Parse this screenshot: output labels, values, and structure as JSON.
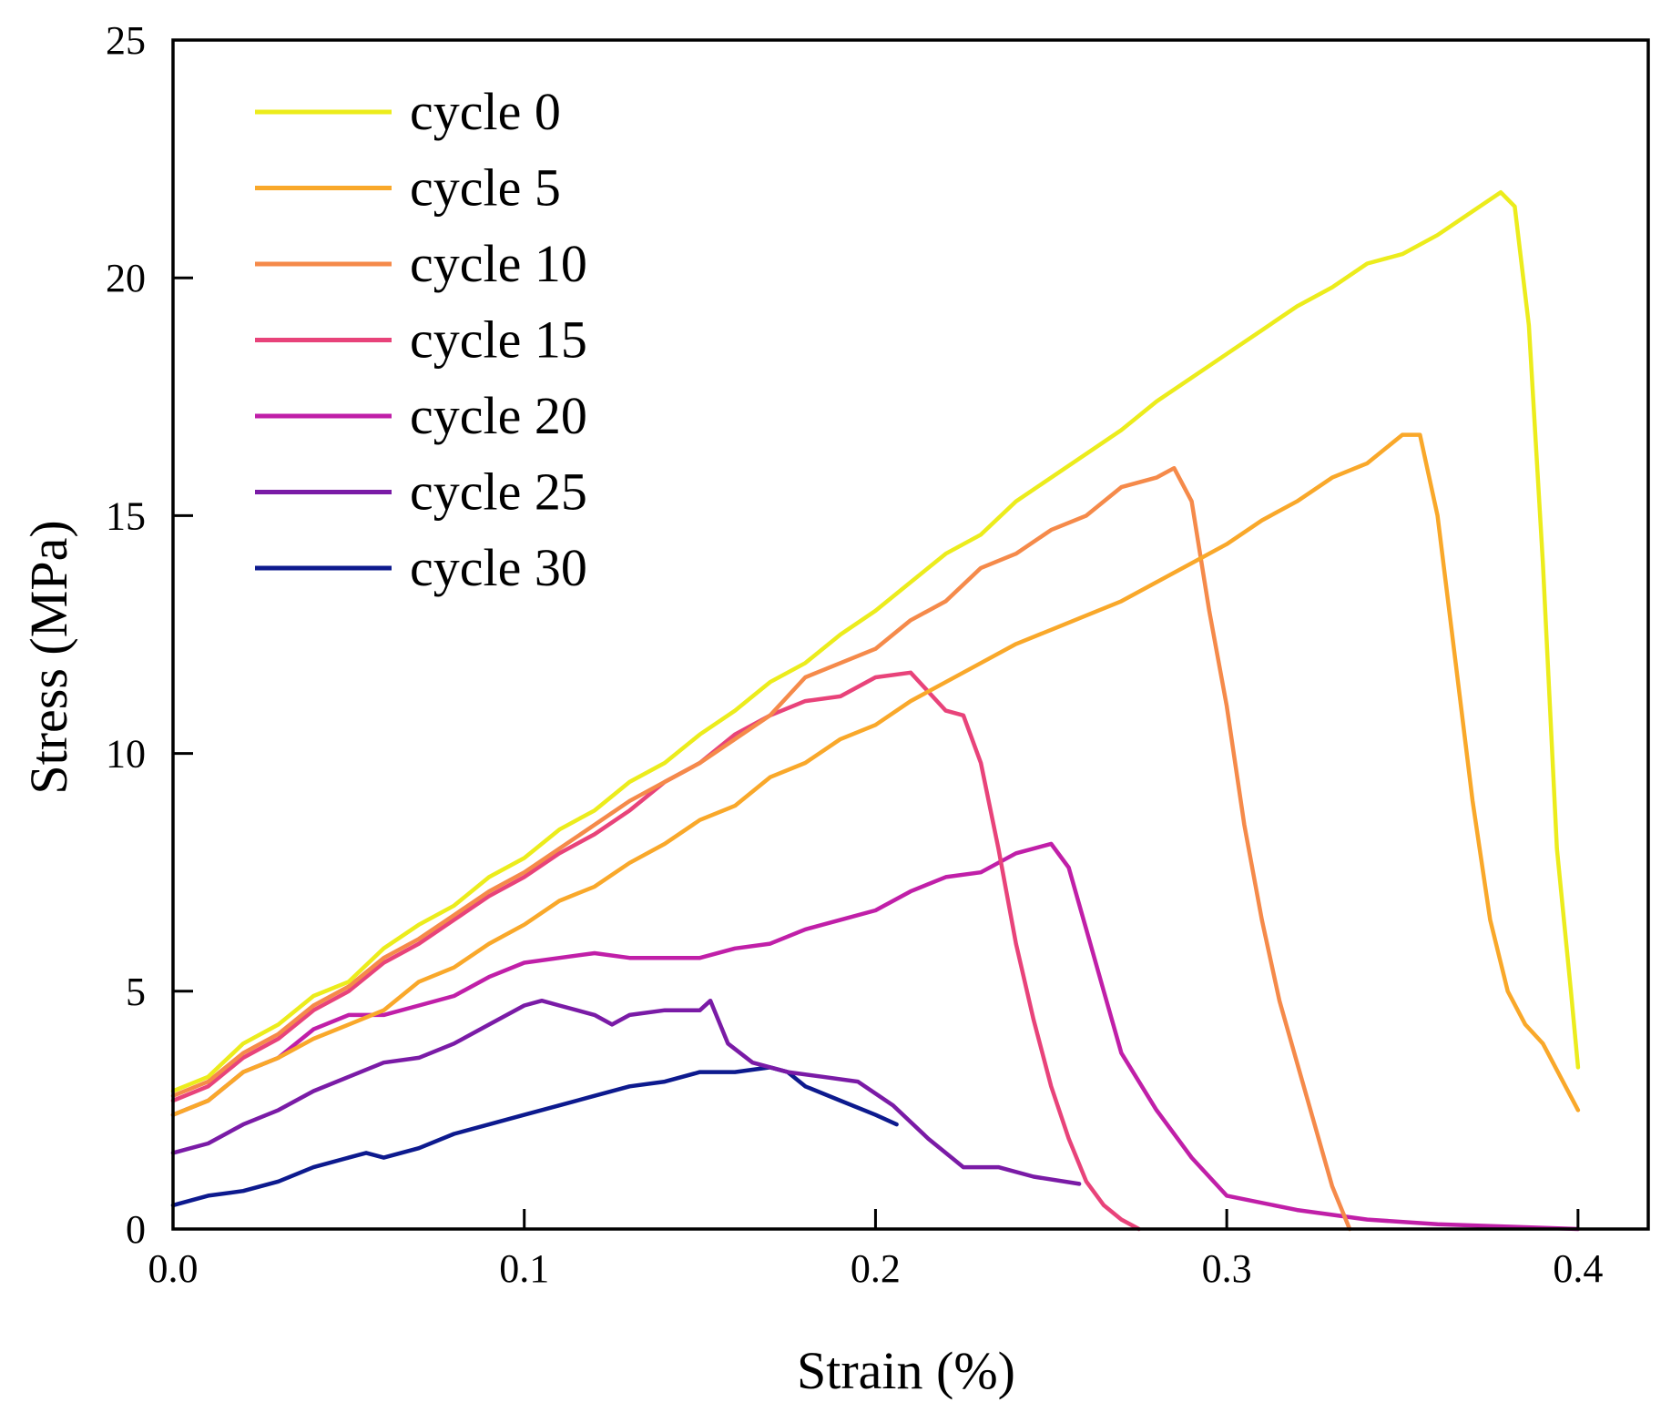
{
  "chart_data": {
    "type": "line",
    "title": "",
    "xlabel": "Strain (%)",
    "ylabel": "Stress (MPa)",
    "xlim": [
      0.0,
      0.42
    ],
    "ylim": [
      0,
      25
    ],
    "xticks": [
      0.0,
      0.1,
      0.2,
      0.3,
      0.4
    ],
    "xtick_labels": [
      "0.0",
      "0.1",
      "0.2",
      "0.3",
      "0.4"
    ],
    "yticks": [
      0,
      5,
      10,
      15,
      20,
      25
    ],
    "ytick_labels": [
      "0",
      "5",
      "10",
      "15",
      "20",
      "25"
    ],
    "grid": false,
    "legend_position": "top-left",
    "series": [
      {
        "name": "cycle 0",
        "color": "#ecec1c",
        "x": [
          0.0,
          0.01,
          0.02,
          0.03,
          0.04,
          0.05,
          0.06,
          0.07,
          0.08,
          0.09,
          0.1,
          0.11,
          0.12,
          0.13,
          0.14,
          0.15,
          0.16,
          0.17,
          0.18,
          0.19,
          0.2,
          0.21,
          0.22,
          0.23,
          0.24,
          0.25,
          0.26,
          0.27,
          0.28,
          0.29,
          0.3,
          0.31,
          0.32,
          0.33,
          0.34,
          0.35,
          0.36,
          0.37,
          0.378,
          0.382,
          0.386,
          0.39,
          0.394,
          0.398,
          0.4
        ],
        "y": [
          2.9,
          3.2,
          3.9,
          4.3,
          4.9,
          5.2,
          5.9,
          6.4,
          6.8,
          7.4,
          7.8,
          8.4,
          8.8,
          9.4,
          9.8,
          10.4,
          10.9,
          11.5,
          11.9,
          12.5,
          13.0,
          13.6,
          14.2,
          14.6,
          15.3,
          15.8,
          16.3,
          16.8,
          17.4,
          17.9,
          18.4,
          18.9,
          19.4,
          19.8,
          20.3,
          20.5,
          20.9,
          21.4,
          21.8,
          21.5,
          19.0,
          14.0,
          8.0,
          5.0,
          3.4
        ]
      },
      {
        "name": "cycle 5",
        "color": "#f9a82a",
        "x": [
          0.0,
          0.01,
          0.02,
          0.03,
          0.04,
          0.05,
          0.06,
          0.07,
          0.08,
          0.09,
          0.1,
          0.11,
          0.12,
          0.13,
          0.14,
          0.15,
          0.16,
          0.17,
          0.18,
          0.19,
          0.2,
          0.21,
          0.22,
          0.23,
          0.24,
          0.25,
          0.26,
          0.27,
          0.28,
          0.29,
          0.3,
          0.31,
          0.32,
          0.33,
          0.34,
          0.35,
          0.355,
          0.36,
          0.365,
          0.37,
          0.375,
          0.38,
          0.385,
          0.39,
          0.4
        ],
        "y": [
          2.4,
          2.7,
          3.3,
          3.6,
          4.0,
          4.3,
          4.6,
          5.2,
          5.5,
          6.0,
          6.4,
          6.9,
          7.2,
          7.7,
          8.1,
          8.6,
          8.9,
          9.5,
          9.8,
          10.3,
          10.6,
          11.1,
          11.5,
          11.9,
          12.3,
          12.6,
          12.9,
          13.2,
          13.6,
          14.0,
          14.4,
          14.9,
          15.3,
          15.8,
          16.1,
          16.7,
          16.7,
          15.0,
          12.0,
          9.0,
          6.5,
          5.0,
          4.3,
          3.9,
          2.5
        ]
      },
      {
        "name": "cycle 10",
        "color": "#f58a4a",
        "x": [
          0.0,
          0.01,
          0.02,
          0.03,
          0.04,
          0.05,
          0.06,
          0.07,
          0.08,
          0.09,
          0.1,
          0.11,
          0.12,
          0.13,
          0.14,
          0.15,
          0.16,
          0.17,
          0.18,
          0.19,
          0.2,
          0.21,
          0.22,
          0.23,
          0.24,
          0.25,
          0.26,
          0.27,
          0.28,
          0.285,
          0.29,
          0.295,
          0.3,
          0.305,
          0.31,
          0.315,
          0.32,
          0.325,
          0.33,
          0.335
        ],
        "y": [
          2.8,
          3.1,
          3.7,
          4.1,
          4.7,
          5.1,
          5.7,
          6.1,
          6.6,
          7.1,
          7.5,
          8.0,
          8.5,
          9.0,
          9.4,
          9.8,
          10.3,
          10.8,
          11.6,
          11.9,
          12.2,
          12.8,
          13.2,
          13.9,
          14.2,
          14.7,
          15.0,
          15.6,
          15.8,
          16.0,
          15.3,
          13.0,
          11.0,
          8.5,
          6.5,
          4.8,
          3.5,
          2.2,
          0.9,
          0.0
        ]
      },
      {
        "name": "cycle 15",
        "color": "#e8437a",
        "x": [
          0.0,
          0.01,
          0.02,
          0.03,
          0.04,
          0.05,
          0.06,
          0.07,
          0.08,
          0.09,
          0.1,
          0.11,
          0.12,
          0.13,
          0.14,
          0.15,
          0.16,
          0.17,
          0.18,
          0.19,
          0.2,
          0.21,
          0.215,
          0.22,
          0.225,
          0.23,
          0.235,
          0.24,
          0.245,
          0.25,
          0.255,
          0.26,
          0.265,
          0.27,
          0.275
        ],
        "y": [
          2.7,
          3.0,
          3.6,
          4.0,
          4.6,
          5.0,
          5.6,
          6.0,
          6.5,
          7.0,
          7.4,
          7.9,
          8.3,
          8.8,
          9.4,
          9.8,
          10.4,
          10.8,
          11.1,
          11.2,
          11.6,
          11.7,
          11.3,
          10.9,
          10.8,
          9.8,
          8.0,
          6.0,
          4.4,
          3.0,
          1.9,
          1.0,
          0.5,
          0.2,
          0.0
        ]
      },
      {
        "name": "cycle 20",
        "color": "#c01fa8",
        "x": [
          0.0,
          0.01,
          0.02,
          0.03,
          0.04,
          0.05,
          0.06,
          0.07,
          0.08,
          0.09,
          0.1,
          0.11,
          0.12,
          0.13,
          0.14,
          0.15,
          0.16,
          0.17,
          0.18,
          0.19,
          0.2,
          0.21,
          0.22,
          0.23,
          0.24,
          0.25,
          0.255,
          0.26,
          0.265,
          0.27,
          0.28,
          0.29,
          0.3,
          0.32,
          0.34,
          0.36,
          0.38,
          0.4
        ],
        "y": [
          2.4,
          2.7,
          3.3,
          3.6,
          4.2,
          4.5,
          4.5,
          4.7,
          4.9,
          5.3,
          5.6,
          5.7,
          5.8,
          5.7,
          5.7,
          5.7,
          5.9,
          6.0,
          6.3,
          6.5,
          6.7,
          7.1,
          7.4,
          7.5,
          7.9,
          8.1,
          7.6,
          6.3,
          5.0,
          3.7,
          2.5,
          1.5,
          0.7,
          0.4,
          0.2,
          0.1,
          0.05,
          0.0
        ]
      },
      {
        "name": "cycle 25",
        "color": "#7a1ba6",
        "x": [
          0.0,
          0.01,
          0.02,
          0.03,
          0.04,
          0.05,
          0.06,
          0.07,
          0.08,
          0.09,
          0.1,
          0.105,
          0.11,
          0.12,
          0.125,
          0.13,
          0.14,
          0.15,
          0.153,
          0.158,
          0.165,
          0.175,
          0.185,
          0.195,
          0.205,
          0.215,
          0.225,
          0.235,
          0.245,
          0.258
        ],
        "y": [
          1.6,
          1.8,
          2.2,
          2.5,
          2.9,
          3.2,
          3.5,
          3.6,
          3.9,
          4.3,
          4.7,
          4.8,
          4.7,
          4.5,
          4.3,
          4.5,
          4.6,
          4.6,
          4.8,
          3.9,
          3.5,
          3.3,
          3.2,
          3.1,
          2.6,
          1.9,
          1.3,
          1.3,
          1.1,
          0.95
        ]
      },
      {
        "name": "cycle 30",
        "color": "#0d1a8e",
        "x": [
          0.0,
          0.01,
          0.02,
          0.03,
          0.04,
          0.05,
          0.055,
          0.06,
          0.07,
          0.08,
          0.09,
          0.1,
          0.11,
          0.12,
          0.13,
          0.14,
          0.15,
          0.16,
          0.17,
          0.175,
          0.18,
          0.19,
          0.2,
          0.206
        ],
        "y": [
          0.5,
          0.7,
          0.8,
          1.0,
          1.3,
          1.5,
          1.6,
          1.5,
          1.7,
          2.0,
          2.2,
          2.4,
          2.6,
          2.8,
          3.0,
          3.1,
          3.3,
          3.3,
          3.4,
          3.3,
          3.0,
          2.7,
          2.4,
          2.2
        ]
      }
    ]
  }
}
